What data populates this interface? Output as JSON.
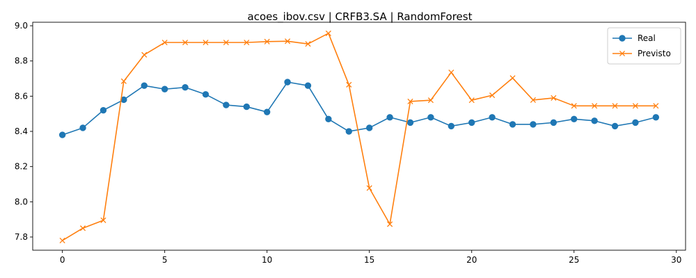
{
  "chart_data": {
    "type": "line",
    "title": "acoes_ibov.csv | CRFB3.SA | RandomForest",
    "xlabel": "",
    "ylabel": "",
    "xlim": [
      -1.45,
      30.45
    ],
    "ylim": [
      7.725,
      9.02
    ],
    "xticks": [
      0,
      5,
      10,
      15,
      20,
      25,
      30
    ],
    "xtick_labels": [
      "0",
      "5",
      "10",
      "15",
      "20",
      "25",
      "30"
    ],
    "yticks": [
      7.8,
      8.0,
      8.2,
      8.4,
      8.6,
      8.8,
      9.0
    ],
    "ytick_labels": [
      "7.8",
      "8.0",
      "8.2",
      "8.4",
      "8.6",
      "8.8",
      "9.0"
    ],
    "grid": false,
    "legend_position": "top-right",
    "x": [
      0,
      1,
      2,
      3,
      4,
      5,
      6,
      7,
      8,
      9,
      10,
      11,
      12,
      13,
      14,
      15,
      16,
      17,
      18,
      19,
      20,
      21,
      22,
      23,
      24,
      25,
      26,
      27,
      28,
      29
    ],
    "series": [
      {
        "name": "Real",
        "color": "#1f77b4",
        "marker": "circle",
        "values": [
          8.38,
          8.42,
          8.52,
          8.58,
          8.66,
          8.64,
          8.65,
          8.61,
          8.55,
          8.54,
          8.51,
          8.68,
          8.66,
          8.47,
          8.4,
          8.42,
          8.48,
          8.45,
          8.48,
          8.43,
          8.45,
          8.48,
          8.44,
          8.44,
          8.45,
          8.47,
          8.46,
          8.43,
          8.45,
          8.48
        ]
      },
      {
        "name": "Previsto",
        "color": "#ff7f0e",
        "marker": "x",
        "values": [
          7.78,
          7.85,
          7.895,
          8.685,
          8.835,
          8.905,
          8.905,
          8.905,
          8.905,
          8.905,
          8.91,
          8.912,
          8.897,
          8.957,
          8.665,
          8.078,
          7.873,
          8.57,
          8.577,
          8.735,
          8.577,
          8.605,
          8.703,
          8.578,
          8.59,
          8.545,
          8.545,
          8.545,
          8.545,
          8.545
        ]
      }
    ]
  }
}
